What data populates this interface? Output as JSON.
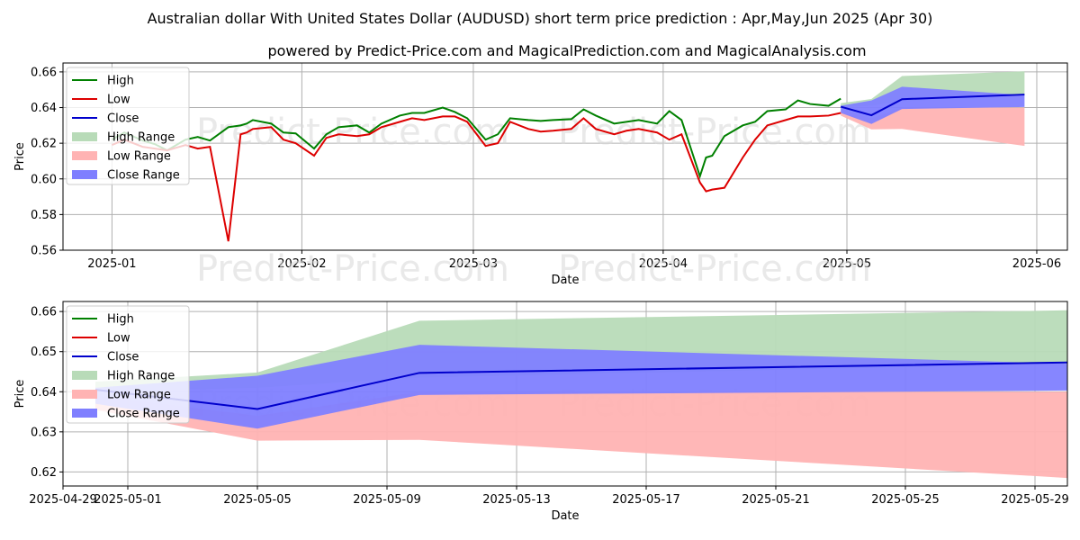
{
  "title": "Australian dollar With United States Dollar (AUDUSD) short term price prediction : Apr,May,Jun 2025 (Apr 30)",
  "subtitle": "powered by Predict-Price.com and MagicalPrediction.com and MagicalAnalysis.com",
  "watermark": "Predict-Price.com",
  "colors": {
    "high": "#008000",
    "low": "#dd0000",
    "close": "#0000cc",
    "high_range": "#b8dbb8",
    "low_range": "#ffb3b3",
    "close_range": "#7f7fff"
  },
  "legend": [
    "High",
    "Low",
    "Close",
    "High Range",
    "Low Range",
    "Close Range"
  ],
  "chart_data": [
    {
      "type": "line",
      "xlabel": "Date",
      "ylabel": "Price",
      "legend_position": "upper-left",
      "grid": true,
      "xlim": [
        "2024-12-24",
        "2025-06-06"
      ],
      "ylim": [
        0.56,
        0.665
      ],
      "x_ticks": [
        "2025-01",
        "2025-02",
        "2025-03",
        "2025-04",
        "2025-05",
        "2025-06"
      ],
      "y_ticks": [
        "0.56",
        "0.58",
        "0.60",
        "0.62",
        "0.64",
        "0.66"
      ],
      "history": {
        "x": [
          "2025-01-01",
          "2025-01-03",
          "2025-01-06",
          "2025-01-08",
          "2025-01-10",
          "2025-01-13",
          "2025-01-15",
          "2025-01-17",
          "2025-01-20",
          "2025-01-22",
          "2025-01-23",
          "2025-01-24",
          "2025-01-27",
          "2025-01-29",
          "2025-01-31",
          "2025-02-03",
          "2025-02-05",
          "2025-02-07",
          "2025-02-10",
          "2025-02-12",
          "2025-02-14",
          "2025-02-17",
          "2025-02-19",
          "2025-02-21",
          "2025-02-24",
          "2025-02-26",
          "2025-02-28",
          "2025-03-03",
          "2025-03-05",
          "2025-03-07",
          "2025-03-10",
          "2025-03-12",
          "2025-03-14",
          "2025-03-17",
          "2025-03-19",
          "2025-03-21",
          "2025-03-24",
          "2025-03-26",
          "2025-03-28",
          "2025-03-31",
          "2025-04-02",
          "2025-04-04",
          "2025-04-07",
          "2025-04-08",
          "2025-04-09",
          "2025-04-11",
          "2025-04-14",
          "2025-04-16",
          "2025-04-18",
          "2025-04-21",
          "2025-04-23",
          "2025-04-25",
          "2025-04-28",
          "2025-04-30"
        ],
        "high": [
          0.622,
          0.626,
          0.6215,
          0.6195,
          0.616,
          0.622,
          0.6235,
          0.6215,
          0.629,
          0.63,
          0.631,
          0.633,
          0.631,
          0.626,
          0.6255,
          0.617,
          0.625,
          0.629,
          0.63,
          0.626,
          0.631,
          0.6355,
          0.637,
          0.637,
          0.64,
          0.6375,
          0.634,
          0.622,
          0.625,
          0.634,
          0.633,
          0.6325,
          0.633,
          0.6335,
          0.639,
          0.6355,
          0.631,
          0.632,
          0.633,
          0.631,
          0.638,
          0.633,
          0.6015,
          0.612,
          0.613,
          0.624,
          0.63,
          0.632,
          0.638,
          0.639,
          0.644,
          0.642,
          0.641,
          0.645
        ],
        "low": [
          0.619,
          0.622,
          0.618,
          0.617,
          0.616,
          0.619,
          0.617,
          0.618,
          0.565,
          0.625,
          0.626,
          0.628,
          0.629,
          0.622,
          0.62,
          0.613,
          0.623,
          0.625,
          0.624,
          0.625,
          0.629,
          0.632,
          0.634,
          0.633,
          0.635,
          0.635,
          0.632,
          0.6185,
          0.62,
          0.632,
          0.628,
          0.6265,
          0.627,
          0.628,
          0.634,
          0.628,
          0.625,
          0.627,
          0.628,
          0.626,
          0.622,
          0.625,
          0.598,
          0.593,
          0.594,
          0.595,
          0.612,
          0.622,
          0.63,
          0.633,
          0.635,
          0.635,
          0.6355,
          0.637
        ]
      }
    },
    {
      "type": "line",
      "xlabel": "Date",
      "ylabel": "Price",
      "legend_position": "upper-left",
      "grid": true,
      "xlim": [
        "2025-04-29",
        "2025-05-30"
      ],
      "ylim": [
        0.6165,
        0.6625
      ],
      "x_ticks": [
        "2025-04-29",
        "2025-05-01",
        "2025-05-05",
        "2025-05-09",
        "2025-05-13",
        "2025-05-17",
        "2025-05-21",
        "2025-05-25",
        "2025-05-29"
      ],
      "y_ticks": [
        "0.62",
        "0.63",
        "0.64",
        "0.65",
        "0.66"
      ],
      "forecast": {
        "x": [
          "2025-04-30",
          "2025-05-05",
          "2025-05-10",
          "2025-05-30"
        ],
        "close": [
          0.6405,
          0.6357,
          0.6447,
          0.6473
        ],
        "close_range_upper": [
          0.641,
          0.644,
          0.6517,
          0.647
        ],
        "close_range_lower": [
          0.637,
          0.6308,
          0.6392,
          0.6403
        ],
        "high_range_upper": [
          0.6425,
          0.6448,
          0.6577,
          0.6603
        ],
        "high_range_lower": [
          0.64,
          0.641,
          0.6435,
          0.647
        ],
        "low_range_upper": [
          0.639,
          0.634,
          0.64,
          0.64
        ],
        "low_range_lower": [
          0.6355,
          0.6278,
          0.628,
          0.6185
        ]
      }
    }
  ]
}
